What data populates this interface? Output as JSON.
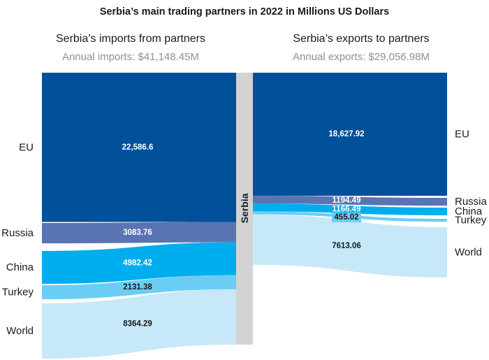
{
  "chart_data": {
    "type": "sankey",
    "title": "Serbia’s main trading partners in 2022 in Millions US Dollars",
    "hub": "Serbia",
    "imports": {
      "title": "Serbia’s imports from partners",
      "subtitle": "Annual imports: $41,148.45M",
      "flows": [
        {
          "name": "EU",
          "value": 22586.6,
          "label": "22,586.6",
          "color": "#00509a",
          "text_color": "#ffffff"
        },
        {
          "name": "Russia",
          "value": 3083.76,
          "label": "3083.76",
          "color": "#5a74b3",
          "text_color": "#ffffff"
        },
        {
          "name": "China",
          "value": 4982.42,
          "label": "4982.42",
          "color": "#00aeef",
          "text_color": "#ffffff"
        },
        {
          "name": "Turkey",
          "value": 2131.38,
          "label": "2131.38",
          "color": "#6ccdf4",
          "text_color": "#1a1a1a"
        },
        {
          "name": "World",
          "value": 8364.29,
          "label": "8364.29",
          "color": "#c6e8f9",
          "text_color": "#1a1a1a"
        }
      ]
    },
    "exports": {
      "title": "Serbia’s exports to partners",
      "subtitle": "Annual exports: $29,056.98M",
      "flows": [
        {
          "name": "EU",
          "value": 18627.92,
          "label": "18,627.92",
          "color": "#00509a",
          "text_color": "#ffffff"
        },
        {
          "name": "Russia",
          "value": 1194.49,
          "label": "1194.49",
          "color": "#5a74b3",
          "text_color": "#ffffff"
        },
        {
          "name": "China",
          "value": 1166.49,
          "label": "1166.49",
          "color": "#00aeef",
          "text_color": "#ffffff"
        },
        {
          "name": "Turkey",
          "value": 455.02,
          "label": "455.02",
          "color": "#6ccdf4",
          "text_color": "#1a1a1a"
        },
        {
          "name": "World",
          "value": 7613.06,
          "label": "7613.06",
          "color": "#c6e8f9",
          "text_color": "#1a1a1a"
        }
      ]
    },
    "hub_color": "#d3d3d3"
  }
}
